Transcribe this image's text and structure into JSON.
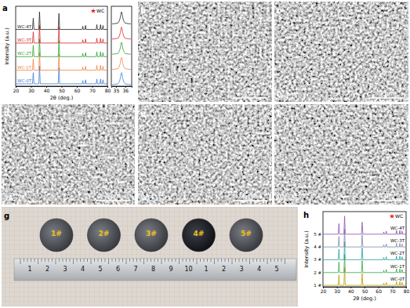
{
  "chart_data": [
    {
      "type": "line",
      "x_label": "2θ (deg.)",
      "y_label": "Intensity (a.u.)",
      "x": [
        20,
        31,
        31.5,
        32,
        35.1,
        35.6,
        36.1,
        47.8,
        48.3,
        48.8,
        63.5,
        63.9,
        64.3,
        65.3,
        65.7,
        66.1,
        72.7,
        73.1,
        73.5,
        75.1,
        75.5,
        75.9,
        76.7,
        77.1,
        77.5,
        80
      ],
      "xlim": [
        20,
        80
      ],
      "xticks": [
        20,
        30,
        40,
        50,
        60,
        70,
        80
      ],
      "ylim": [
        0,
        100
      ],
      "tick_labels": "x",
      "annotations": [
        "WC"
      ],
      "series": [
        {
          "name": "WC-0T",
          "color": "#3b7dd8",
          "values": [
            3,
            3,
            17,
            3,
            3,
            25,
            3,
            3,
            23,
            3,
            3,
            7,
            3,
            3,
            8,
            3,
            3,
            9,
            3,
            3,
            9,
            3,
            3,
            8,
            3,
            3
          ]
        },
        {
          "name": "WC-1T",
          "color": "#f08040",
          "values": [
            20,
            20,
            34,
            20,
            20,
            42,
            20,
            20,
            40,
            20,
            20,
            24,
            20,
            20,
            25,
            20,
            20,
            26,
            20,
            20,
            26,
            20,
            20,
            25,
            20,
            20
          ]
        },
        {
          "name": "WC-2T",
          "color": "#2ca02c",
          "values": [
            37,
            37,
            51,
            37,
            37,
            59,
            37,
            37,
            57,
            37,
            37,
            41,
            37,
            37,
            42,
            37,
            37,
            43,
            37,
            37,
            43,
            37,
            37,
            42,
            37,
            37
          ]
        },
        {
          "name": "WC-3T",
          "color": "#d62728",
          "values": [
            54,
            54,
            68,
            54,
            54,
            76,
            54,
            54,
            74,
            54,
            54,
            58,
            54,
            54,
            59,
            54,
            54,
            60,
            54,
            54,
            60,
            54,
            54,
            59,
            54,
            54
          ]
        },
        {
          "name": "WC-4T",
          "color": "#222222",
          "values": [
            71,
            71,
            85,
            71,
            71,
            93,
            71,
            71,
            91,
            71,
            71,
            75,
            71,
            71,
            76,
            71,
            71,
            77,
            71,
            71,
            77,
            71,
            71,
            76,
            71,
            71
          ]
        }
      ]
    },
    {
      "type": "line",
      "x": [
        34.6,
        35.2,
        35.45,
        35.6,
        35.75,
        36.0,
        36.6
      ],
      "xlim": [
        34.5,
        36.7
      ],
      "xticks": [
        35,
        36
      ],
      "ylim": [
        0,
        100
      ],
      "tick_labels": "x",
      "series": [
        {
          "color": "#3b7dd8",
          "values": [
            2,
            3,
            9,
            17,
            9,
            3,
            2
          ]
        },
        {
          "color": "#f08040",
          "values": [
            21,
            22,
            28,
            36,
            28,
            22,
            21
          ]
        },
        {
          "color": "#2ca02c",
          "values": [
            40,
            41,
            47,
            55,
            47,
            41,
            40
          ]
        },
        {
          "color": "#d62728",
          "values": [
            59,
            60,
            66,
            74,
            66,
            60,
            59
          ]
        },
        {
          "color": "#222222",
          "values": [
            78,
            79,
            85,
            93,
            85,
            79,
            78
          ]
        }
      ]
    },
    {
      "type": "line",
      "x_label": "2θ (deg.)",
      "y_label": "Intensity (a.u.)",
      "x": [
        20,
        31,
        31.5,
        32,
        35.1,
        35.6,
        36.1,
        47.8,
        48.3,
        48.8,
        63.5,
        63.9,
        64.3,
        65.3,
        65.7,
        66.1,
        72.7,
        73.1,
        73.5,
        75.1,
        75.5,
        75.9,
        76.7,
        77.1,
        77.5,
        80
      ],
      "xlim": [
        20,
        80
      ],
      "xticks": [
        20,
        30,
        40,
        50,
        60,
        70,
        80
      ],
      "ylim": [
        0,
        100
      ],
      "tick_labels": "x",
      "annotations": [
        "WC"
      ],
      "series": [
        {
          "name": "WC-0T",
          "sample": "1 #",
          "color": "#b8a000",
          "values": [
            2,
            2,
            16,
            2,
            2,
            26,
            2,
            2,
            18,
            2,
            2,
            5,
            2,
            2,
            6,
            2,
            2,
            7,
            2,
            2,
            7,
            2,
            2,
            6,
            2,
            2
          ]
        },
        {
          "name": "WC-1T",
          "sample": "2 #",
          "color": "#3aa64a",
          "values": [
            19,
            19,
            33,
            19,
            19,
            43,
            19,
            19,
            35,
            19,
            19,
            22,
            19,
            19,
            23,
            19,
            19,
            24,
            19,
            19,
            24,
            19,
            19,
            23,
            19,
            19
          ]
        },
        {
          "name": "WC-2T",
          "sample": "3 #",
          "color": "#2aa0a0",
          "values": [
            36,
            36,
            50,
            36,
            36,
            60,
            36,
            36,
            52,
            36,
            36,
            39,
            36,
            36,
            40,
            36,
            36,
            41,
            36,
            36,
            41,
            36,
            36,
            40,
            36,
            36
          ]
        },
        {
          "name": "WC-3T",
          "sample": "4 #",
          "color": "#7b8aa8",
          "values": [
            53,
            53,
            67,
            53,
            53,
            77,
            53,
            53,
            69,
            53,
            53,
            56,
            53,
            53,
            57,
            53,
            53,
            58,
            53,
            53,
            58,
            53,
            53,
            57,
            53,
            53
          ]
        },
        {
          "name": "WC-4T",
          "sample": "5 #",
          "color": "#8a4fb0",
          "values": [
            70,
            70,
            84,
            70,
            70,
            94,
            70,
            70,
            86,
            70,
            70,
            73,
            70,
            70,
            74,
            70,
            70,
            75,
            70,
            70,
            75,
            70,
            70,
            74,
            70,
            70
          ]
        }
      ]
    }
  ],
  "panel_labels": [
    "a",
    "b",
    "c",
    "d",
    "e",
    "f",
    "g",
    "h"
  ],
  "sem_images": [
    {
      "label": "WC-0T",
      "scale_bar": "5 µm"
    },
    {
      "label": "WC-1T",
      "scale_bar": "5 µm"
    },
    {
      "label": "WC-2T",
      "scale_bar": "5 µm"
    },
    {
      "label": "WC-3T",
      "scale_bar": "5 µm"
    },
    {
      "label": "WC-4T",
      "scale_bar": "5 µm"
    }
  ],
  "photo": {
    "samples": [
      "1#",
      "2#",
      "3#",
      "4#",
      "5#"
    ],
    "ruler_labels": [
      "1",
      "2",
      "3",
      "4",
      "5",
      "6",
      "7",
      "8",
      "9",
      "10",
      "1",
      "2",
      "3",
      "4",
      "5"
    ]
  }
}
